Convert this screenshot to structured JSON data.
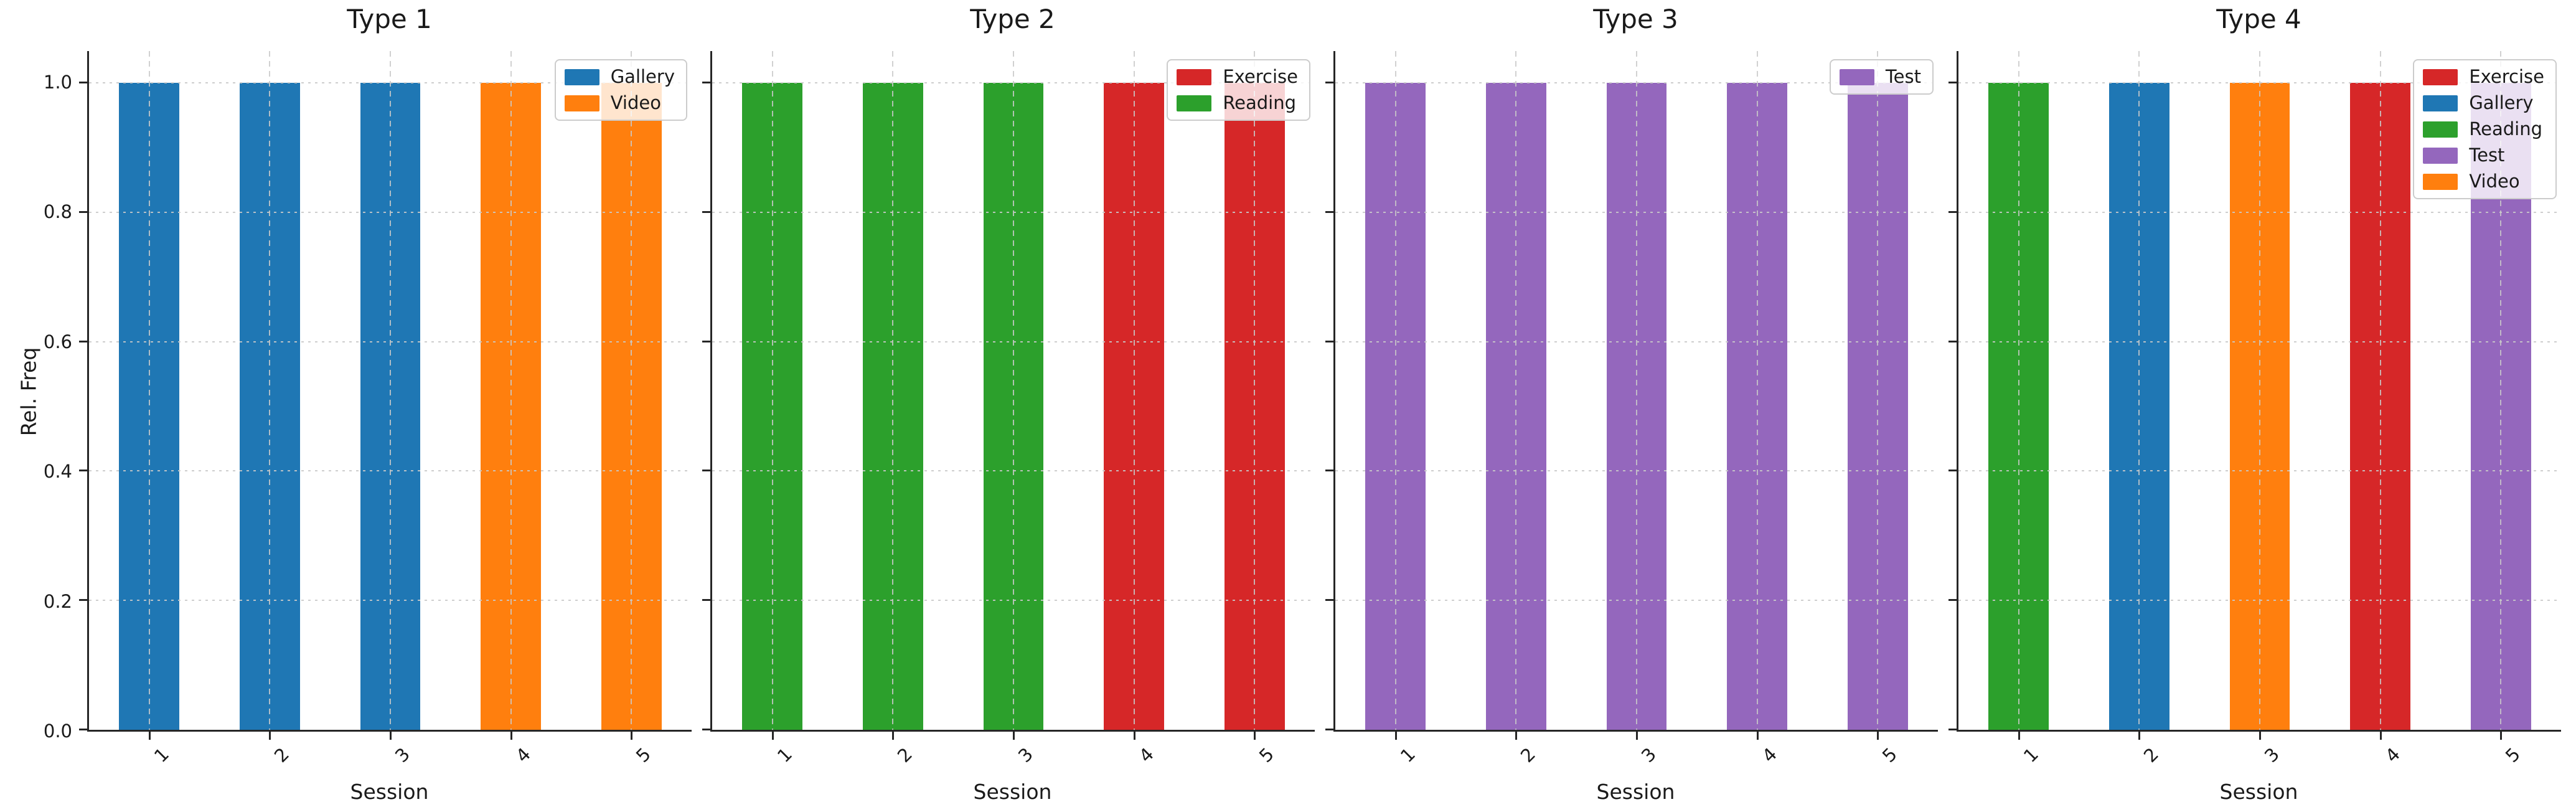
{
  "figure": {
    "background": "#ffffff"
  },
  "shared_axes": {
    "xlabel": "Session",
    "ylabel": "Rel. Freq",
    "ytick_labels": [
      "0.0",
      "0.2",
      "0.4",
      "0.6",
      "0.8",
      "1.0"
    ],
    "ytick_values": [
      0,
      0.2,
      0.4,
      0.6,
      0.8,
      1.0
    ],
    "xtick_labels": [
      "1",
      "2",
      "3",
      "4",
      "5"
    ],
    "ylim": [
      0,
      1.049
    ],
    "grid": true,
    "legend_position": "upper right"
  },
  "category_colors": {
    "Exercise": "#d62728",
    "Gallery": "#1f77b4",
    "Reading": "#2ca02c",
    "Test": "#9467bd",
    "Video": "#ff7f0e"
  },
  "style": {
    "grid_color": "#c9c9c9",
    "spine_color": "#262626",
    "text_color": "#1a1a1a",
    "legend_border": "#cccccc",
    "legend_bg": "rgba(255,255,255,0.8)"
  },
  "chart_data": [
    {
      "type": "bar",
      "title": "Type 1",
      "xlabel": "Session",
      "ylabel": "Rel. Freq",
      "categories": [
        "1",
        "2",
        "3",
        "4",
        "5"
      ],
      "series": [
        {
          "name": "Gallery",
          "values": [
            1.0,
            1.0,
            1.0,
            null,
            null
          ]
        },
        {
          "name": "Video",
          "values": [
            null,
            null,
            null,
            1.0,
            1.0
          ]
        }
      ],
      "legend": [
        "Gallery",
        "Video"
      ],
      "ylim": [
        0,
        1.049
      ]
    },
    {
      "type": "bar",
      "title": "Type 2",
      "xlabel": "Session",
      "categories": [
        "1",
        "2",
        "3",
        "4",
        "5"
      ],
      "series": [
        {
          "name": "Exercise",
          "values": [
            null,
            null,
            null,
            1.0,
            1.0
          ]
        },
        {
          "name": "Reading",
          "values": [
            1.0,
            1.0,
            1.0,
            null,
            null
          ]
        }
      ],
      "legend": [
        "Exercise",
        "Reading"
      ],
      "ylim": [
        0,
        1.049
      ]
    },
    {
      "type": "bar",
      "title": "Type 3",
      "xlabel": "Session",
      "categories": [
        "1",
        "2",
        "3",
        "4",
        "5"
      ],
      "series": [
        {
          "name": "Test",
          "values": [
            1.0,
            1.0,
            1.0,
            1.0,
            1.0
          ]
        }
      ],
      "legend": [
        "Test"
      ],
      "ylim": [
        0,
        1.049
      ]
    },
    {
      "type": "bar",
      "title": "Type 4",
      "xlabel": "Session",
      "categories": [
        "1",
        "2",
        "3",
        "4",
        "5"
      ],
      "series": [
        {
          "name": "Exercise",
          "values": [
            null,
            null,
            null,
            1.0,
            null
          ]
        },
        {
          "name": "Gallery",
          "values": [
            null,
            1.0,
            null,
            null,
            null
          ]
        },
        {
          "name": "Reading",
          "values": [
            1.0,
            null,
            null,
            null,
            null
          ]
        },
        {
          "name": "Test",
          "values": [
            null,
            null,
            null,
            null,
            1.0
          ]
        },
        {
          "name": "Video",
          "values": [
            null,
            null,
            1.0,
            null,
            null
          ]
        }
      ],
      "legend": [
        "Exercise",
        "Gallery",
        "Reading",
        "Test",
        "Video"
      ],
      "ylim": [
        0,
        1.049
      ]
    }
  ]
}
